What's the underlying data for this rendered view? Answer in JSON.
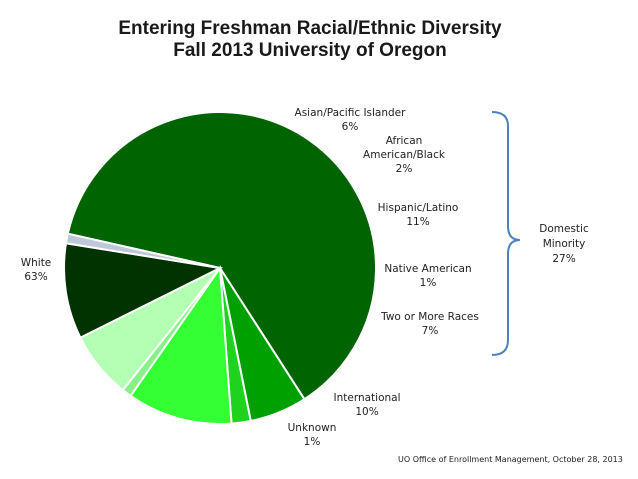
{
  "chart_data": {
    "type": "pie",
    "title": [
      "Entering Freshman Racial/Ethnic Diversity",
      "Fall 2013 University of Oregon"
    ],
    "slices": [
      {
        "label": [
          "White",
          "63%"
        ],
        "value": 63,
        "color": "#006400"
      },
      {
        "label": [
          "Asian/Pacific Islander",
          "6%"
        ],
        "value": 6,
        "color": "#00A000"
      },
      {
        "label": [
          "African",
          "American/Black",
          "2%"
        ],
        "value": 2,
        "color": "#1ED21E"
      },
      {
        "label": [
          "Hispanic/Latino",
          "11%"
        ],
        "value": 11,
        "color": "#33FF33"
      },
      {
        "label": [
          "Native American",
          "1%"
        ],
        "value": 1,
        "color": "#88F088"
      },
      {
        "label": [
          "Two or More Races",
          "7%"
        ],
        "value": 7,
        "color": "#B3FFB3"
      },
      {
        "label": [
          "International",
          "10%"
        ],
        "value": 10,
        "color": "#003300"
      },
      {
        "label": [
          "Unknown",
          "1%"
        ],
        "value": 1,
        "color": "#BDC8D8"
      }
    ],
    "bracket": {
      "label": [
        "Domestic",
        "Minority",
        "27%"
      ],
      "color": "#4F81BD"
    },
    "source": "UO Office of Enrollment Management, October 28, 2013"
  }
}
